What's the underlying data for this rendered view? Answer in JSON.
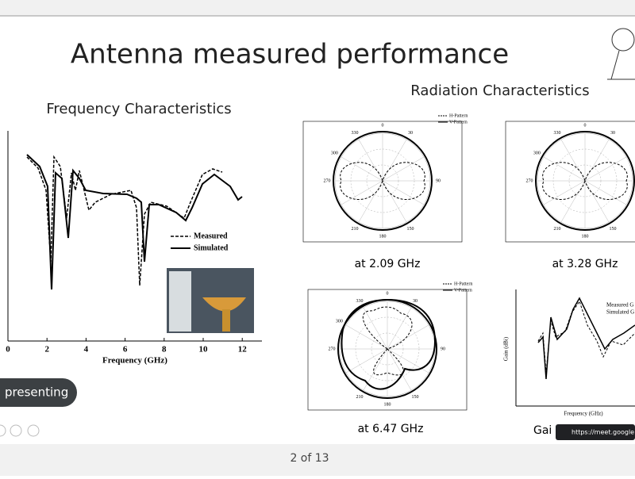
{
  "slide": {
    "title": "Antenna measured performance",
    "frequency_heading": "Frequency Characteristics",
    "radiation_heading": "Radiation Characteristics",
    "frequency_plot": {
      "x_ticks": [
        "0",
        "2",
        "4",
        "6",
        "8",
        "10",
        "12"
      ],
      "x_label": "Frequency (GHz)",
      "legend": [
        "Measured",
        "Simulated"
      ]
    },
    "polar_legend": [
      "H-Pattern",
      "V-Pattern"
    ],
    "polar_angles": [
      "0",
      "30",
      "90",
      "150",
      "180",
      "210",
      "270",
      "300",
      "330"
    ],
    "captions": [
      "at 2.09 GHz",
      "at 3.28 GHz",
      "at 6.47 GHz",
      "Gai"
    ],
    "gain_plot": {
      "legend": [
        "Measured G",
        "Simulated G"
      ],
      "x_label": "Frequency (GHz)",
      "y_label": "Gain (dBi)"
    }
  },
  "meet": {
    "presenting": "presenting",
    "page_indicator": "2 of 13",
    "url": "https://meet.google."
  }
}
